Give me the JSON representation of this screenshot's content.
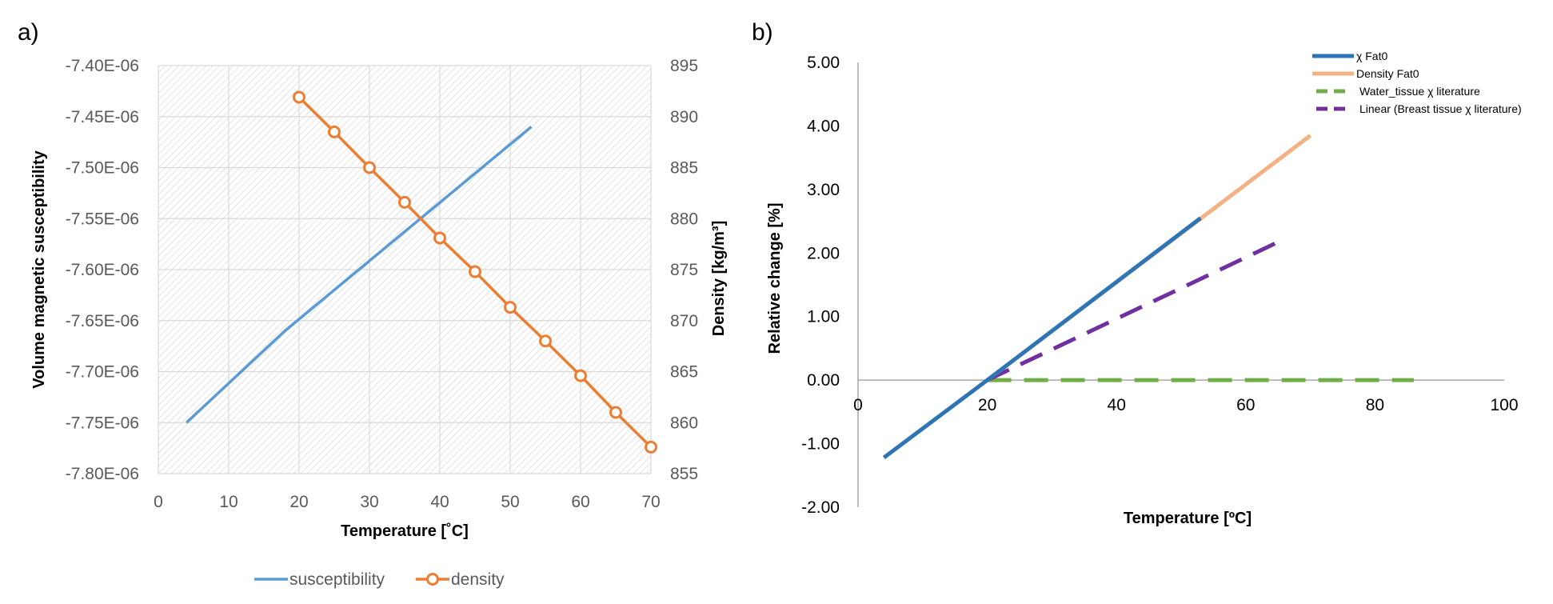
{
  "chart_data": [
    {
      "panel": "a)",
      "type": "line",
      "xlabel": "Temperature [˚C]",
      "ylabel": "Volume magnetic susceptibility",
      "y2label": "Density [kg/m³]",
      "xlim": [
        0,
        70
      ],
      "ylim": [
        -7.8e-06,
        -7.4e-06
      ],
      "y2lim": [
        855,
        895
      ],
      "x_ticks": [
        "0",
        "10",
        "20",
        "30",
        "40",
        "50",
        "60",
        "70"
      ],
      "y_ticks": [
        "-7.40E-06",
        "-7.45E-06",
        "-7.50E-06",
        "-7.55E-06",
        "-7.60E-06",
        "-7.65E-06",
        "-7.70E-06",
        "-7.75E-06",
        "-7.80E-06"
      ],
      "y2_ticks": [
        "895",
        "890",
        "885",
        "880",
        "875",
        "870",
        "865",
        "860",
        "855"
      ],
      "series": [
        {
          "name": "susceptibility",
          "axis": "left",
          "color": "#5B9BD5",
          "x": [
            4,
            18,
            53
          ],
          "y": [
            -7.75e-06,
            -7.66e-06,
            -7.46e-06
          ]
        },
        {
          "name": "density",
          "axis": "right",
          "color": "#ED7D31",
          "markers": true,
          "x": [
            20,
            25,
            30,
            35,
            40,
            45,
            50,
            55,
            60,
            65,
            70
          ],
          "y": [
            891.9,
            888.5,
            885.0,
            881.6,
            878.1,
            874.8,
            871.3,
            868.0,
            864.6,
            861.0,
            857.6
          ]
        }
      ],
      "legend": [
        "susceptibility",
        "density"
      ]
    },
    {
      "panel": "b)",
      "type": "line",
      "xlabel": "Temperature [ºC]",
      "ylabel": "Relative change [%]",
      "xlim": [
        0,
        100
      ],
      "ylim": [
        -2.0,
        5.0
      ],
      "x_ticks": [
        "0",
        "20",
        "40",
        "60",
        "80",
        "100"
      ],
      "y_ticks": [
        "5.00",
        "4.00",
        "3.00",
        "2.00",
        "1.00",
        "0.00",
        "-1.00",
        "-2.00"
      ],
      "series": [
        {
          "name": "χ Fat0",
          "color": "#2E75B6",
          "dash": false,
          "x": [
            4,
            20,
            53
          ],
          "y": [
            -1.22,
            0.0,
            2.55
          ]
        },
        {
          "name": "Density Fat0",
          "color": "#F4B183",
          "dash": false,
          "x": [
            20,
            70
          ],
          "y": [
            0.0,
            3.85
          ]
        },
        {
          "name": "Water_tissue χ literature",
          "color": "#70AD47",
          "dash": true,
          "x": [
            20,
            86
          ],
          "y": [
            0.0,
            0.0
          ]
        },
        {
          "name": "Linear (Breast tissue χ literature)",
          "color": "#7030A0",
          "dash": true,
          "x": [
            20,
            66
          ],
          "y": [
            0.0,
            2.22
          ]
        }
      ],
      "legend": [
        "χ Fat0",
        "Density Fat0",
        "Water_tissue χ literature",
        "Linear (Breast tissue χ literature)"
      ]
    }
  ]
}
